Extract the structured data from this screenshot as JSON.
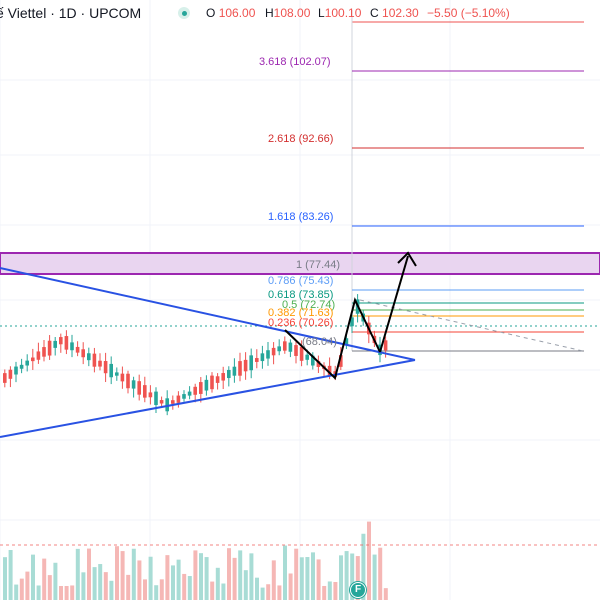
{
  "header": {
    "symbol_title": "ế Viettel · 1D · UPCOM",
    "ohlc": {
      "o_label": "O",
      "o_value": "106.00",
      "h_label": "H",
      "h_value": "108.00",
      "l_label": "L",
      "l_value": "100.10",
      "c_label": "C",
      "c_value": "102.30",
      "change": "−5.50 (−5.10%)"
    }
  },
  "fib_levels": [
    {
      "label": "3.618 (102.07)",
      "color": "#9c27b0"
    },
    {
      "label": "2.618 (92.66)",
      "color": "#d32f2f"
    },
    {
      "label": "1.618 (83.26)",
      "color": "#2962ff"
    },
    {
      "label": "1 (77.44)",
      "color": "#787b86"
    },
    {
      "label": "0.786 (75.43)",
      "color": "#5b9cf6"
    },
    {
      "label": "0.618 (73.85)",
      "color": "#089981"
    },
    {
      "label": "0.5 (72.74)",
      "color": "#4caf50"
    },
    {
      "label": "0.382 (71.63)",
      "color": "#ff9800"
    },
    {
      "label": "0.236 (70.26)",
      "color": "#f44336"
    },
    {
      "label": "(68.04)",
      "color": "#787b86"
    }
  ],
  "badge": {
    "label": "F",
    "icon": "earnings-badge"
  },
  "colors": {
    "up": "#26a69a",
    "down": "#ef5350",
    "trendline": "#2952e3",
    "zone": "#9c27b0"
  }
}
